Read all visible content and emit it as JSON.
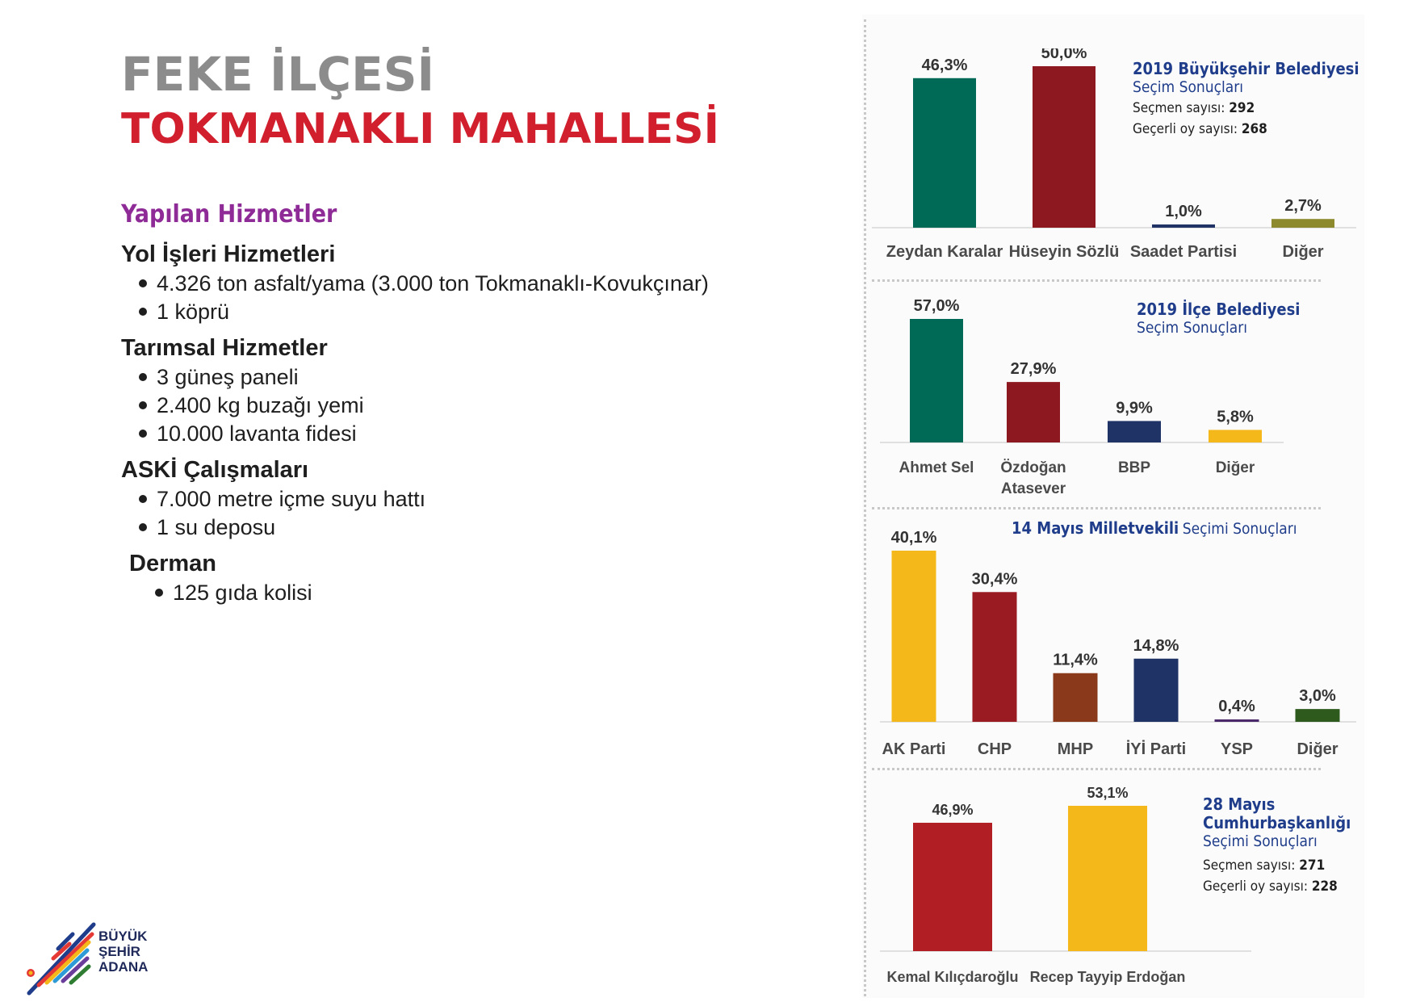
{
  "header": {
    "title_line1": "FEKE İLÇESİ",
    "title_line2": "TOKMANAKLI MAHALLESİ"
  },
  "services": {
    "heading": "Yapılan Hizmetler",
    "groups": [
      {
        "title": "Yol İşleri Hizmetleri",
        "items": [
          "4.326 ton asfalt/yama (3.000 ton Tokmanaklı-Kovukçınar)",
          "1 köprü"
        ]
      },
      {
        "title": "Tarımsal Hizmetler",
        "items": [
          "3 güneş paneli",
          "2.400 kg buzağı yemi",
          "10.000 lavanta fidesi"
        ]
      },
      {
        "title": "ASKİ Çalışmaları",
        "items": [
          "7.000 metre içme suyu hattı",
          "1 su deposu"
        ]
      },
      {
        "title": "Derman",
        "items": [
          "125 gıda kolisi"
        ]
      }
    ]
  },
  "logo": {
    "line1": "BÜYÜK",
    "line2": "ŞEHİR",
    "line3": "ADANA"
  },
  "charts": {
    "c1": {
      "title": "2019 Büyükşehir Belediyesi",
      "subtitle": "Seçim Sonuçları",
      "voters_label": "Seçmen sayısı:",
      "voters": "292",
      "valid_label": "Geçerli oy sayısı:",
      "valid": "268"
    },
    "c2": {
      "title": "2019 İlçe Belediyesi",
      "subtitle": "Seçim Sonuçları"
    },
    "c3": {
      "title": "14 Mayıs Milletvekili",
      "subtitle": "Seçimi Sonuçları"
    },
    "c4": {
      "title_l1": "28 Mayıs",
      "title_l2": "Cumhurbaşkanlığı",
      "subtitle": "Seçimi Sonuçları",
      "voters_label": "Seçmen sayısı:",
      "voters": "271",
      "valid_label": "Geçerli oy sayısı:",
      "valid": "228"
    }
  },
  "chart_data": [
    {
      "type": "bar",
      "title": "2019 Büyükşehir Belediyesi Seçim Sonuçları",
      "categories": [
        [
          "Zeydan Karalar"
        ],
        [
          "Hüseyin Sözlü"
        ],
        [
          "Saadet Partisi"
        ],
        [
          "Diğer"
        ]
      ],
      "values": [
        46.3,
        50.0,
        1.0,
        2.7
      ],
      "labels": [
        "46,3%",
        "50,0%",
        "1,0%",
        "2,7%"
      ],
      "colors": [
        "#006a57",
        "#8e1820",
        "#1f3366",
        "#8c8a2c"
      ],
      "ylim": [
        0,
        50
      ]
    },
    {
      "type": "bar",
      "title": "2019 İlçe Belediyesi Seçim Sonuçları",
      "categories": [
        [
          "Ahmet Sel"
        ],
        [
          "Özdoğan",
          "Atasever"
        ],
        [
          "BBP"
        ],
        [
          "Diğer"
        ]
      ],
      "values": [
        57.0,
        27.9,
        9.9,
        5.8
      ],
      "labels": [
        "57,0%",
        "27,9%",
        "9,9%",
        "5,8%"
      ],
      "colors": [
        "#006a57",
        "#8e1820",
        "#1f3366",
        "#f5b81b"
      ],
      "ylim": [
        0,
        57
      ]
    },
    {
      "type": "bar",
      "title": "14 Mayıs Milletvekili Seçimi Sonuçları",
      "categories": [
        [
          "AK Parti"
        ],
        [
          "CHP"
        ],
        [
          "MHP"
        ],
        [
          "İYİ Parti"
        ],
        [
          "YSP"
        ],
        [
          "Diğer"
        ]
      ],
      "values": [
        40.1,
        30.4,
        11.4,
        14.8,
        0.4,
        3.0
      ],
      "labels": [
        "40,1%",
        "30,4%",
        "11,4%",
        "14,8%",
        "0,4%",
        "3,0%"
      ],
      "colors": [
        "#f5b81b",
        "#9b1b22",
        "#8a3a1a",
        "#1f3366",
        "#4b2a6b",
        "#2e5a1e"
      ],
      "ylim": [
        0,
        40.1
      ]
    },
    {
      "type": "bar",
      "title": "28 Mayıs Cumhurbaşkanlığı Seçimi Sonuçları",
      "categories": [
        [
          "Kemal Kılıçdaroğlu"
        ],
        [
          "Recep Tayyip Erdoğan"
        ]
      ],
      "values": [
        46.9,
        53.1
      ],
      "labels": [
        "46,9%",
        "53,1%"
      ],
      "colors": [
        "#b11f24",
        "#f5b81b"
      ],
      "ylim": [
        0,
        53.1
      ]
    }
  ]
}
